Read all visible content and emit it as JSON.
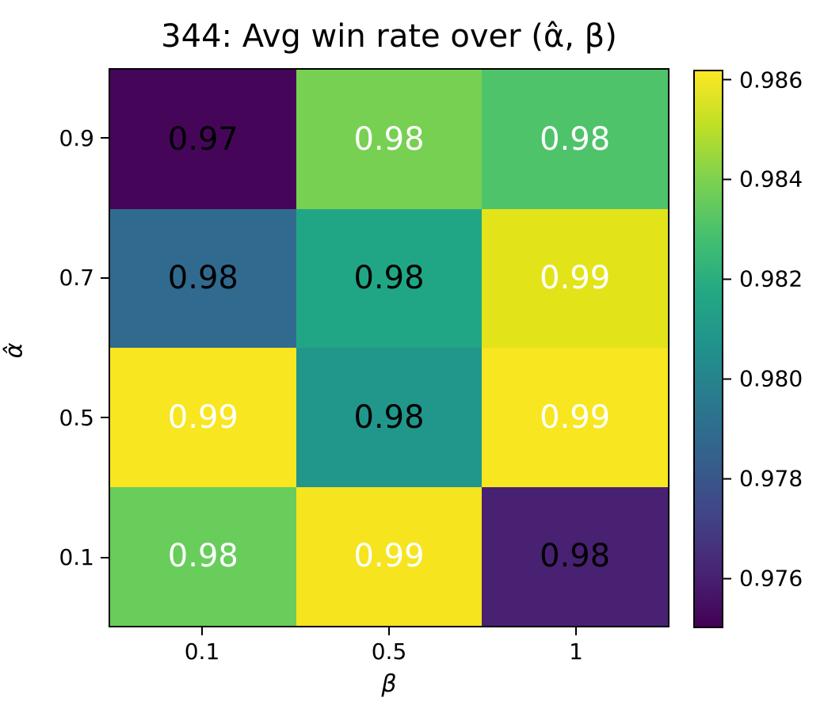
{
  "title": "344: Avg win rate over (α̂, β)",
  "chart_data": {
    "type": "heatmap",
    "title": "344: Avg win rate over (α̂, β)",
    "xlabel": "β",
    "ylabel": "α̂",
    "x_ticks": [
      "0.1",
      "0.5",
      "1"
    ],
    "y_ticks": [
      "0.9",
      "0.7",
      "0.5",
      "0.1"
    ],
    "colormap": "viridis",
    "grid": "off",
    "legend": "colorbar-right",
    "cells": [
      {
        "row": 1,
        "col": 1,
        "y": "0.9",
        "x": "0.1",
        "value": 0.97,
        "label": "0.97",
        "color": "#45065a",
        "text_color": "#000000"
      },
      {
        "row": 1,
        "col": 2,
        "y": "0.9",
        "x": "0.5",
        "value": 0.98,
        "label": "0.98",
        "color": "#77d052",
        "text_color": "#ffffff"
      },
      {
        "row": 1,
        "col": 3,
        "y": "0.9",
        "x": "1",
        "value": 0.98,
        "label": "0.98",
        "color": "#4ec36a",
        "text_color": "#ffffff"
      },
      {
        "row": 2,
        "col": 1,
        "y": "0.7",
        "x": "0.1",
        "value": 0.98,
        "label": "0.98",
        "color": "#316a8f",
        "text_color": "#000000"
      },
      {
        "row": 2,
        "col": 2,
        "y": "0.7",
        "x": "0.5",
        "value": 0.98,
        "label": "0.98",
        "color": "#21a685",
        "text_color": "#000000"
      },
      {
        "row": 2,
        "col": 3,
        "y": "0.7",
        "x": "1",
        "value": 0.99,
        "label": "0.99",
        "color": "#e2e419",
        "text_color": "#ffffff"
      },
      {
        "row": 3,
        "col": 1,
        "y": "0.5",
        "x": "0.1",
        "value": 0.99,
        "label": "0.99",
        "color": "#f8e621",
        "text_color": "#ffffff"
      },
      {
        "row": 3,
        "col": 2,
        "y": "0.5",
        "x": "0.5",
        "value": 0.98,
        "label": "0.98",
        "color": "#21968b",
        "text_color": "#000000"
      },
      {
        "row": 3,
        "col": 3,
        "y": "0.5",
        "x": "1",
        "value": 0.99,
        "label": "0.99",
        "color": "#f8e621",
        "text_color": "#ffffff"
      },
      {
        "row": 4,
        "col": 1,
        "y": "0.1",
        "x": "0.1",
        "value": 0.98,
        "label": "0.98",
        "color": "#68cd5a",
        "text_color": "#ffffff"
      },
      {
        "row": 4,
        "col": 2,
        "y": "0.1",
        "x": "0.5",
        "value": 0.99,
        "label": "0.99",
        "color": "#f6e41f",
        "text_color": "#ffffff"
      },
      {
        "row": 4,
        "col": 3,
        "y": "0.1",
        "x": "1",
        "value": 0.98,
        "label": "0.98",
        "color": "#482173",
        "text_color": "#000000"
      }
    ],
    "colorbar": {
      "vmin": 0.975,
      "vmax": 0.9862,
      "ticks": [
        {
          "label": "0.986",
          "value": 0.986
        },
        {
          "label": "0.984",
          "value": 0.984
        },
        {
          "label": "0.982",
          "value": 0.982
        },
        {
          "label": "0.980",
          "value": 0.98
        },
        {
          "label": "0.978",
          "value": 0.978
        },
        {
          "label": "0.976",
          "value": 0.976
        }
      ]
    }
  }
}
